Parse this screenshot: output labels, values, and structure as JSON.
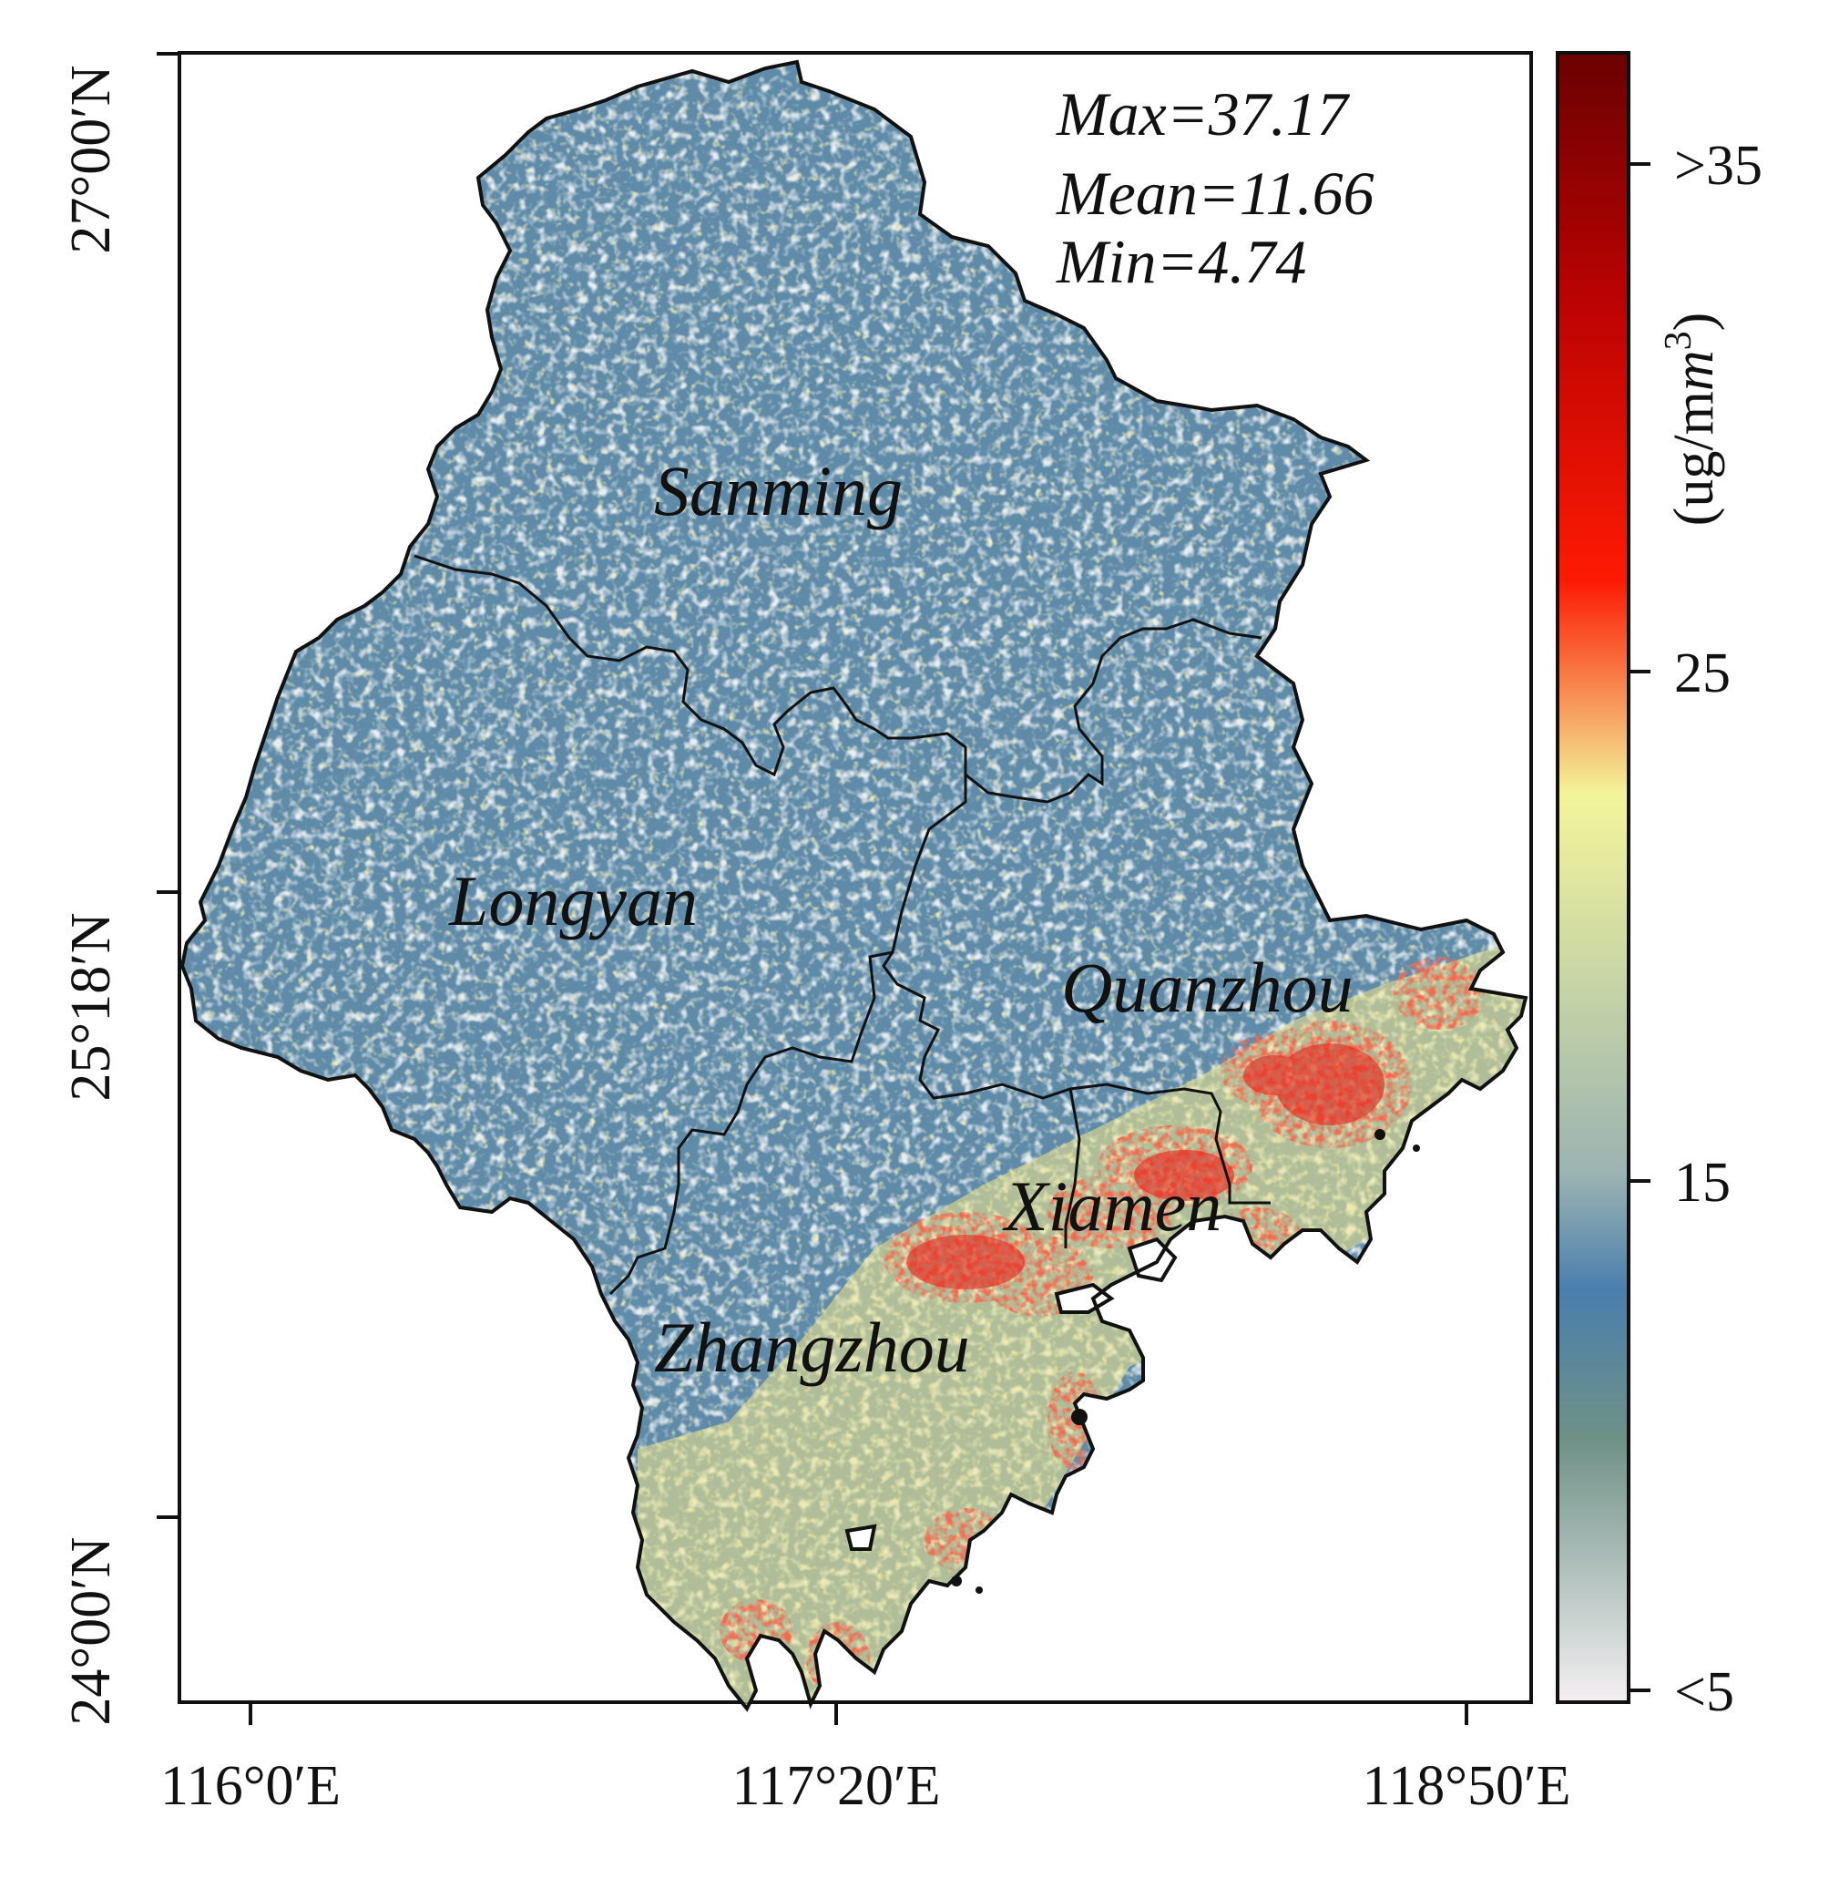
{
  "map": {
    "stats": {
      "max": "Max=37.17",
      "mean": "Mean=11.66",
      "min": "Min=4.74"
    },
    "regions": [
      {
        "id": "sanming",
        "label": "Sanming"
      },
      {
        "id": "longyan",
        "label": "Longyan"
      },
      {
        "id": "quanzhou",
        "label": "Quanzhou"
      },
      {
        "id": "xiamen",
        "label": "Xiamen"
      },
      {
        "id": "zhangzhou",
        "label": "Zhangzhou"
      }
    ],
    "lat_ticks": [
      "27°00′N",
      "25°18′N",
      "24°00′N"
    ],
    "lon_ticks": [
      "116°0′E",
      "117°20′E",
      "118°50′E"
    ]
  },
  "colorbar": {
    "unit": "(ug/m",
    "unit_superscript": "3",
    "unit_close": ")",
    "ticks": [
      ">35",
      "25",
      "15",
      "<5"
    ],
    "range": [
      5,
      35
    ],
    "colors": {
      "c0": "#f4f0f2",
      "c1": "#6e9186",
      "c2": "#4a7fad",
      "c3": "#9bb3b2",
      "c4": "#f3f59a",
      "c5": "#fd1a03",
      "c6": "#bb0303",
      "c7": "#6a0101"
    }
  },
  "colors": {
    "land_base": "#5f8ba8",
    "land_light": "#c9d7df",
    "hotspot": "#e8241a",
    "warm": "#f2e88a",
    "border": "#111111"
  }
}
